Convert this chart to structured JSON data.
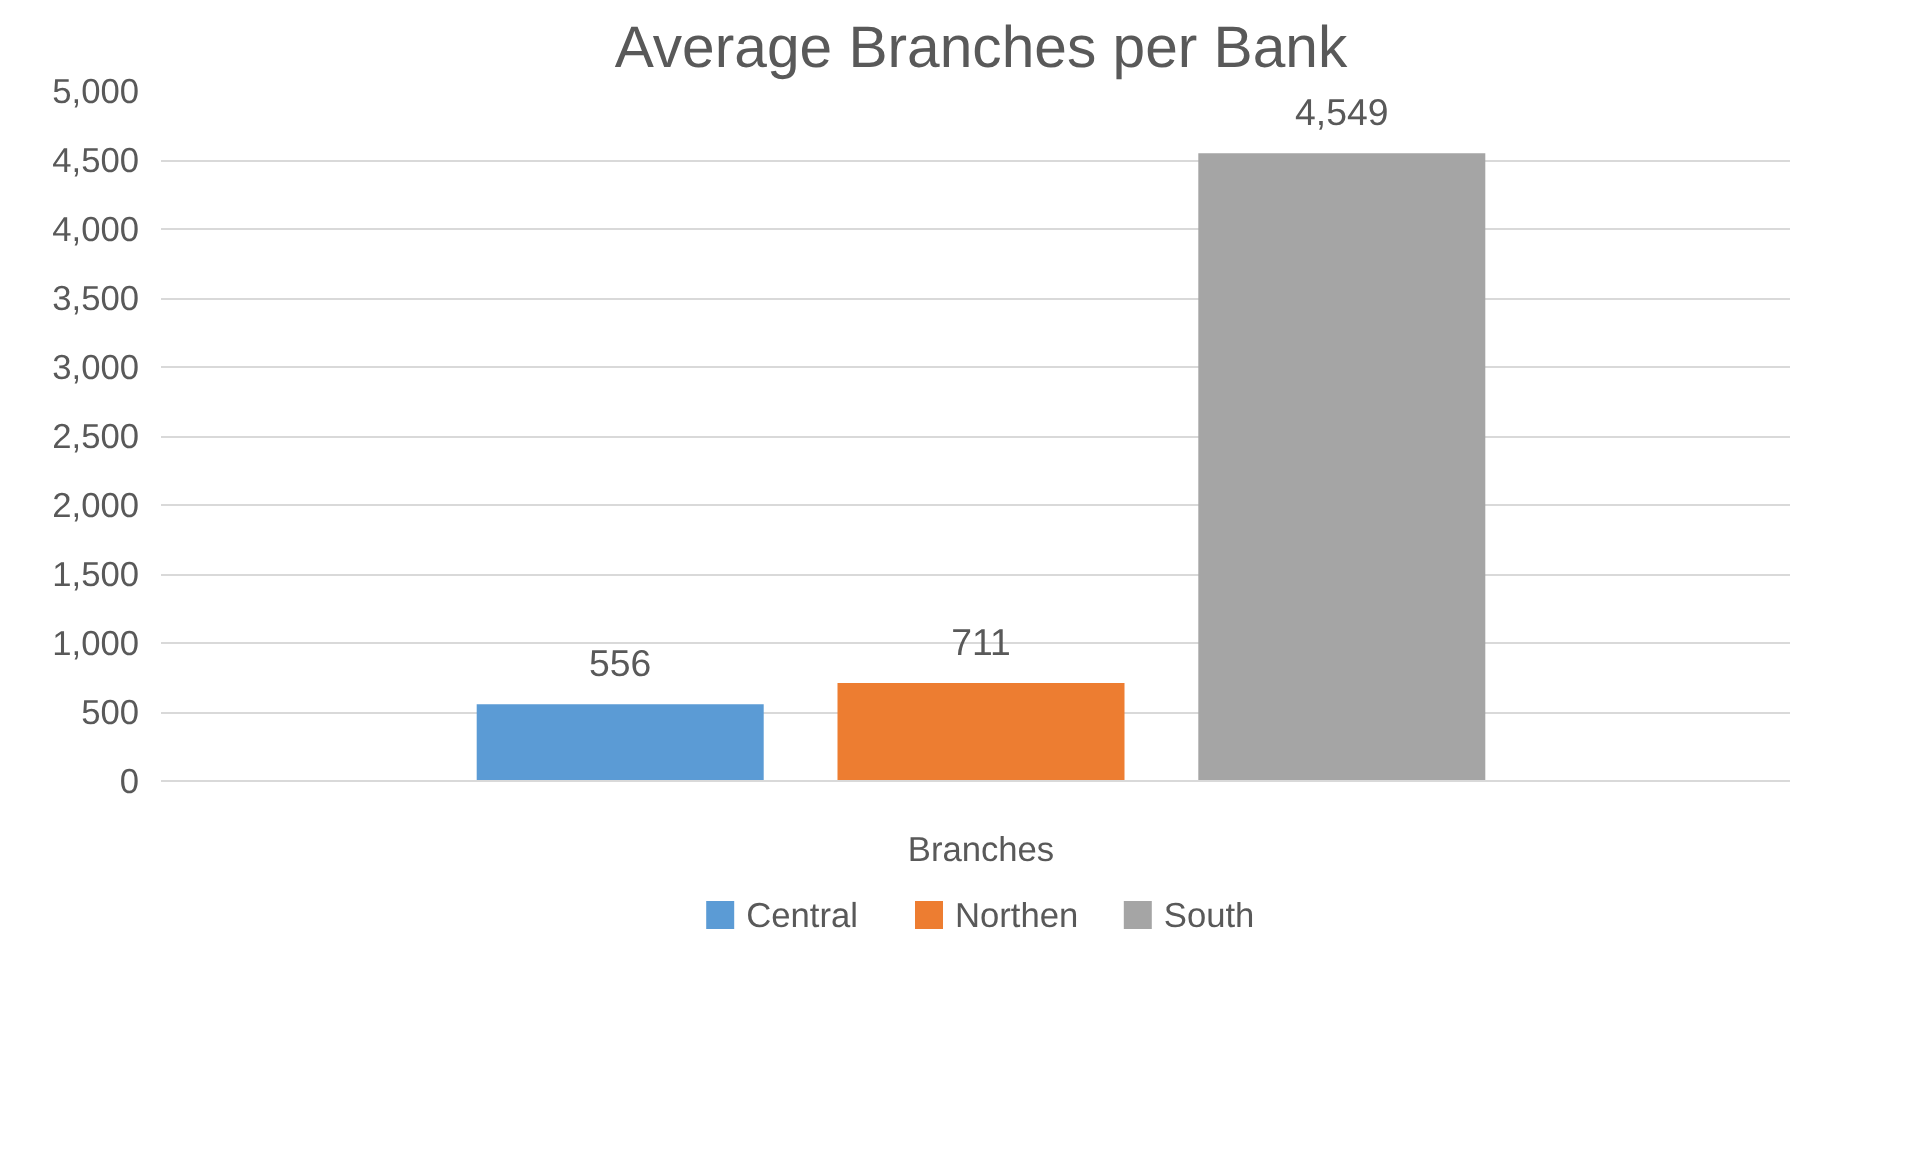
{
  "chart_data": {
    "type": "bar",
    "title": "Average Branches per Bank",
    "categories": [
      "Branches"
    ],
    "series": [
      {
        "name": "Central",
        "color": "#5b9bd5",
        "values": [
          556
        ],
        "value_labels": [
          "556"
        ]
      },
      {
        "name": "Northen",
        "color": "#ed7d31",
        "values": [
          711
        ],
        "value_labels": [
          "711"
        ]
      },
      {
        "name": "South",
        "color": "#a5a5a5",
        "values": [
          4549
        ],
        "value_labels": [
          "4,549"
        ]
      }
    ],
    "ylim": [
      0,
      5000
    ],
    "yticks": [
      0,
      500,
      {
        "value": 1000,
        "label": "1,000"
      },
      {
        "value": 1500,
        "label": "1,500"
      },
      {
        "value": 2000,
        "label": "2,000"
      },
      {
        "value": 2500,
        "label": "2,500"
      },
      {
        "value": 3000,
        "label": "3,000"
      },
      {
        "value": 3500,
        "label": "3,500"
      },
      {
        "value": 4000,
        "label": "4,000"
      },
      {
        "value": 4500,
        "label": "4,500"
      },
      {
        "value": 5000,
        "label": "5,000"
      }
    ],
    "grid": "y",
    "legend": "bottom"
  }
}
